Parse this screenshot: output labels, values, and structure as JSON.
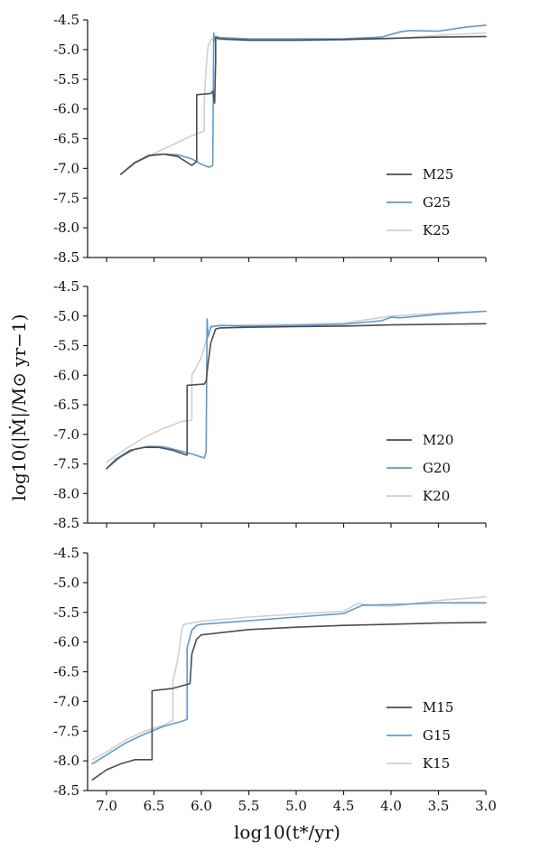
{
  "colors": {
    "M": "#4d4d4d",
    "G": "#5b9bd5",
    "K": "#d0d0d0"
  },
  "ylabel": "log10(|Ṁ|/M⊙ yr−1)",
  "xlabel": "log10(t*/yr)",
  "chart_data": [
    {
      "type": "line",
      "xlim": [
        7.2,
        3.0
      ],
      "ylim": [
        -8.5,
        -4.5
      ],
      "xticks": [
        "7.0",
        "6.5",
        "6.0",
        "5.5",
        "5.0",
        "4.5",
        "4.0",
        "3.5",
        "3.0"
      ],
      "xtick_values": [
        7.0,
        6.5,
        6.0,
        5.5,
        5.0,
        4.5,
        4.0,
        3.5,
        3.0
      ],
      "yticks": [
        "-4.5",
        "-5.0",
        "-5.5",
        "-6.0",
        "-6.5",
        "-7.0",
        "-7.5",
        "-8.0",
        "-8.5"
      ],
      "ytick_values": [
        -4.5,
        -5.0,
        -5.5,
        -6.0,
        -6.5,
        -7.0,
        -7.5,
        -8.0,
        -8.5
      ],
      "legend_position": "lower-right",
      "series": [
        {
          "name": "M25",
          "color_key": "M",
          "x": [
            6.85,
            6.7,
            6.55,
            6.4,
            6.25,
            6.1,
            6.05,
            6.05,
            5.9,
            5.88,
            5.86,
            5.85,
            5.85,
            5.8,
            5.5,
            5.0,
            4.5,
            4.0,
            3.5,
            3.0
          ],
          "y": [
            -7.1,
            -6.9,
            -6.78,
            -6.76,
            -6.8,
            -6.95,
            -6.88,
            -5.76,
            -5.74,
            -5.7,
            -5.9,
            -5.2,
            -4.8,
            -4.82,
            -4.84,
            -4.84,
            -4.83,
            -4.81,
            -4.79,
            -4.78
          ]
        },
        {
          "name": "G25",
          "color_key": "G",
          "x": [
            6.85,
            6.7,
            6.55,
            6.4,
            6.25,
            6.1,
            6.0,
            5.92,
            5.88,
            5.87,
            5.86,
            5.85,
            5.8,
            5.5,
            5.0,
            4.5,
            4.1,
            3.9,
            3.8,
            3.5,
            3.2,
            3.0
          ],
          "y": [
            -7.1,
            -6.9,
            -6.79,
            -6.76,
            -6.77,
            -6.84,
            -6.93,
            -6.98,
            -6.95,
            -4.72,
            -4.85,
            -4.78,
            -4.8,
            -4.82,
            -4.82,
            -4.82,
            -4.79,
            -4.7,
            -4.68,
            -4.69,
            -4.62,
            -4.59
          ]
        },
        {
          "name": "K25",
          "color_key": "K",
          "x": [
            6.85,
            6.7,
            6.5,
            6.3,
            6.1,
            5.97,
            5.97,
            5.95,
            5.93,
            5.9,
            5.88,
            5.85,
            5.5,
            5.0,
            4.5,
            4.0,
            3.5,
            3.0
          ],
          "y": [
            -7.1,
            -6.92,
            -6.75,
            -6.6,
            -6.45,
            -6.37,
            -5.85,
            -5.3,
            -4.95,
            -4.83,
            -4.82,
            -4.83,
            -4.85,
            -4.85,
            -4.84,
            -4.82,
            -4.76,
            -4.72
          ]
        }
      ]
    },
    {
      "type": "line",
      "xlim": [
        7.2,
        3.0
      ],
      "ylim": [
        -8.5,
        -4.5
      ],
      "xticks": [
        "7.0",
        "6.5",
        "6.0",
        "5.5",
        "5.0",
        "4.5",
        "4.0",
        "3.5",
        "3.0"
      ],
      "xtick_values": [
        7.0,
        6.5,
        6.0,
        5.5,
        5.0,
        4.5,
        4.0,
        3.5,
        3.0
      ],
      "yticks": [
        "-4.5",
        "-5.0",
        "-5.5",
        "-6.0",
        "-6.5",
        "-7.0",
        "-7.5",
        "-8.0",
        "-8.5"
      ],
      "ytick_values": [
        -4.5,
        -5.0,
        -5.5,
        -6.0,
        -6.5,
        -7.0,
        -7.5,
        -8.0,
        -8.5
      ],
      "legend_position": "lower-right",
      "series": [
        {
          "name": "M20",
          "color_key": "M",
          "x": [
            7.0,
            6.9,
            6.75,
            6.6,
            6.45,
            6.3,
            6.15,
            6.15,
            5.97,
            5.95,
            5.93,
            5.9,
            5.85,
            5.8,
            5.5,
            5.0,
            4.5,
            4.0,
            3.5,
            3.0
          ],
          "y": [
            -7.58,
            -7.42,
            -7.27,
            -7.22,
            -7.22,
            -7.27,
            -7.35,
            -6.17,
            -6.15,
            -6.1,
            -5.8,
            -5.45,
            -5.22,
            -5.2,
            -5.19,
            -5.18,
            -5.17,
            -5.15,
            -5.14,
            -5.13
          ]
        },
        {
          "name": "G20",
          "color_key": "G",
          "x": [
            7.0,
            6.85,
            6.7,
            6.55,
            6.4,
            6.25,
            6.1,
            5.97,
            5.95,
            5.94,
            5.93,
            5.92,
            5.9,
            5.8,
            5.5,
            5.0,
            4.5,
            4.1,
            4.0,
            3.9,
            3.5,
            3.0
          ],
          "y": [
            -7.58,
            -7.38,
            -7.25,
            -7.2,
            -7.21,
            -7.27,
            -7.33,
            -7.4,
            -7.3,
            -5.05,
            -5.35,
            -5.3,
            -5.18,
            -5.16,
            -5.17,
            -5.16,
            -5.14,
            -5.08,
            -5.02,
            -5.03,
            -4.97,
            -4.92
          ]
        },
        {
          "name": "K20",
          "color_key": "K",
          "x": [
            7.0,
            6.8,
            6.6,
            6.4,
            6.2,
            6.1,
            6.1,
            6.05,
            6.0,
            5.95,
            5.9,
            5.85,
            5.5,
            5.0,
            4.5,
            4.0,
            3.5,
            3.0
          ],
          "y": [
            -7.47,
            -7.25,
            -7.05,
            -6.9,
            -6.78,
            -6.76,
            -6.0,
            -5.85,
            -5.7,
            -5.4,
            -5.2,
            -5.17,
            -5.15,
            -5.14,
            -5.12,
            -5.0,
            -4.95,
            -4.92
          ]
        }
      ]
    },
    {
      "type": "line",
      "xlim": [
        7.2,
        3.0
      ],
      "ylim": [
        -8.5,
        -4.5
      ],
      "xticks": [
        "7.0",
        "6.5",
        "6.0",
        "5.5",
        "5.0",
        "4.5",
        "4.0",
        "3.5",
        "3.0"
      ],
      "xtick_values": [
        7.0,
        6.5,
        6.0,
        5.5,
        5.0,
        4.5,
        4.0,
        3.5,
        3.0
      ],
      "yticks": [
        "-4.5",
        "-5.0",
        "-5.5",
        "-6.0",
        "-6.5",
        "-7.0",
        "-7.5",
        "-8.0",
        "-8.5"
      ],
      "ytick_values": [
        -4.5,
        -5.0,
        -5.5,
        -6.0,
        -6.5,
        -7.0,
        -7.5,
        -8.0,
        -8.5
      ],
      "legend_position": "lower-right",
      "series": [
        {
          "name": "M15",
          "color_key": "M",
          "x": [
            7.15,
            7.0,
            6.85,
            6.7,
            6.52,
            6.52,
            6.3,
            6.12,
            6.1,
            6.05,
            6.0,
            5.5,
            5.0,
            4.5,
            4.0,
            3.5,
            3.0
          ],
          "y": [
            -8.32,
            -8.15,
            -8.05,
            -7.98,
            -7.98,
            -6.82,
            -6.78,
            -6.7,
            -6.2,
            -5.95,
            -5.88,
            -5.79,
            -5.75,
            -5.72,
            -5.7,
            -5.68,
            -5.67
          ]
        },
        {
          "name": "G15",
          "color_key": "G",
          "x": [
            7.15,
            7.0,
            6.8,
            6.6,
            6.4,
            6.2,
            6.15,
            6.15,
            6.1,
            6.05,
            6.0,
            5.5,
            5.0,
            4.5,
            4.4,
            4.3,
            4.0,
            3.8,
            3.5,
            3.0
          ],
          "y": [
            -8.05,
            -7.9,
            -7.7,
            -7.55,
            -7.42,
            -7.33,
            -7.3,
            -6.1,
            -5.8,
            -5.72,
            -5.7,
            -5.64,
            -5.58,
            -5.52,
            -5.45,
            -5.38,
            -5.37,
            -5.36,
            -5.34,
            -5.34
          ]
        },
        {
          "name": "K15",
          "color_key": "K",
          "x": [
            7.15,
            7.0,
            6.8,
            6.6,
            6.4,
            6.3,
            6.3,
            6.25,
            6.22,
            6.2,
            6.18,
            6.0,
            5.5,
            5.0,
            4.5,
            4.35,
            4.2,
            4.0,
            3.5,
            3.0
          ],
          "y": [
            -7.98,
            -7.85,
            -7.65,
            -7.5,
            -7.4,
            -7.32,
            -6.65,
            -6.3,
            -5.95,
            -5.75,
            -5.7,
            -5.65,
            -5.58,
            -5.53,
            -5.48,
            -5.35,
            -5.38,
            -5.4,
            -5.3,
            -5.24
          ]
        }
      ]
    }
  ]
}
